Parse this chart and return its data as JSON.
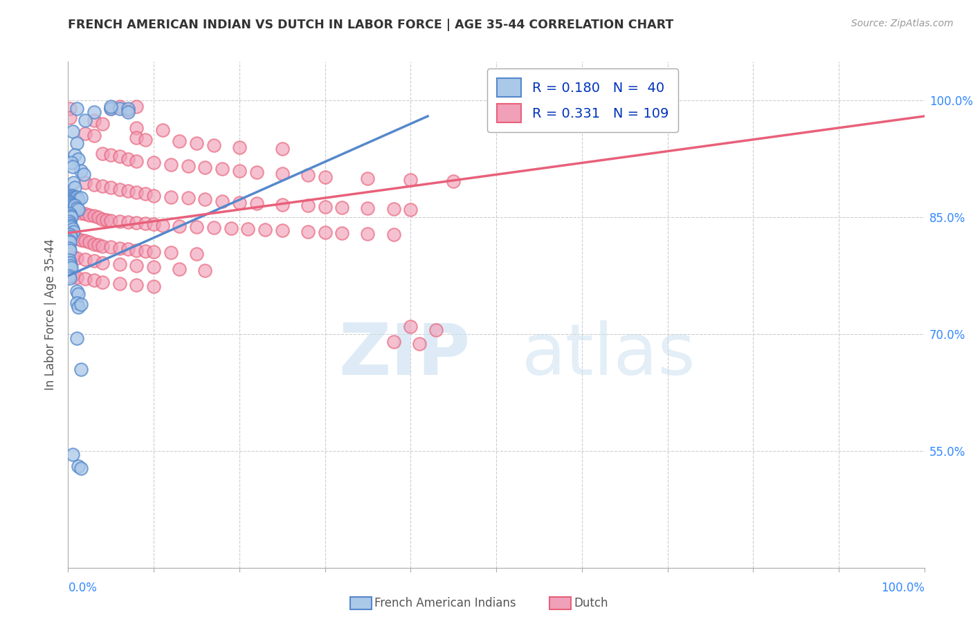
{
  "title": "FRENCH AMERICAN INDIAN VS DUTCH IN LABOR FORCE | AGE 35-44 CORRELATION CHART",
  "source": "Source: ZipAtlas.com",
  "ylabel": "In Labor Force | Age 35-44",
  "ytick_labels": [
    "55.0%",
    "70.0%",
    "85.0%",
    "100.0%"
  ],
  "ytick_values": [
    0.55,
    0.7,
    0.85,
    1.0
  ],
  "xlim": [
    0.0,
    1.0
  ],
  "ylim": [
    0.4,
    1.05
  ],
  "blue_color": "#5588cc",
  "pink_color": "#e8607a",
  "blue_fill": "#aac8e8",
  "pink_fill": "#f0a0b8",
  "watermark_zip": "ZIP",
  "watermark_atlas": "atlas",
  "blue_scatter": [
    [
      0.01,
      0.99
    ],
    [
      0.05,
      0.99
    ],
    [
      0.06,
      0.99
    ],
    [
      0.07,
      0.99
    ],
    [
      0.07,
      0.985
    ],
    [
      0.03,
      0.985
    ],
    [
      0.05,
      0.992
    ],
    [
      0.02,
      0.975
    ],
    [
      0.005,
      0.96
    ],
    [
      0.01,
      0.945
    ],
    [
      0.008,
      0.93
    ],
    [
      0.012,
      0.925
    ],
    [
      0.015,
      0.91
    ],
    [
      0.018,
      0.905
    ],
    [
      0.004,
      0.92
    ],
    [
      0.005,
      0.915
    ],
    [
      0.006,
      0.895
    ],
    [
      0.008,
      0.888
    ],
    [
      0.003,
      0.878
    ],
    [
      0.004,
      0.875
    ],
    [
      0.005,
      0.878
    ],
    [
      0.006,
      0.876
    ],
    [
      0.007,
      0.875
    ],
    [
      0.008,
      0.873
    ],
    [
      0.01,
      0.876
    ],
    [
      0.012,
      0.873
    ],
    [
      0.015,
      0.875
    ],
    [
      0.002,
      0.87
    ],
    [
      0.003,
      0.868
    ],
    [
      0.004,
      0.866
    ],
    [
      0.005,
      0.865
    ],
    [
      0.006,
      0.863
    ],
    [
      0.007,
      0.862
    ],
    [
      0.008,
      0.865
    ],
    [
      0.01,
      0.862
    ],
    [
      0.012,
      0.86
    ],
    [
      0.002,
      0.855
    ],
    [
      0.003,
      0.852
    ],
    [
      0.004,
      0.85
    ],
    [
      0.001,
      0.845
    ],
    [
      0.002,
      0.842
    ],
    [
      0.003,
      0.84
    ],
    [
      0.004,
      0.838
    ],
    [
      0.005,
      0.835
    ],
    [
      0.006,
      0.832
    ],
    [
      0.002,
      0.828
    ],
    [
      0.003,
      0.825
    ],
    [
      0.001,
      0.82
    ],
    [
      0.002,
      0.818
    ],
    [
      0.001,
      0.81
    ],
    [
      0.002,
      0.808
    ],
    [
      0.001,
      0.795
    ],
    [
      0.002,
      0.792
    ],
    [
      0.003,
      0.788
    ],
    [
      0.004,
      0.785
    ],
    [
      0.001,
      0.775
    ],
    [
      0.002,
      0.772
    ],
    [
      0.01,
      0.755
    ],
    [
      0.012,
      0.752
    ],
    [
      0.01,
      0.74
    ],
    [
      0.012,
      0.735
    ],
    [
      0.015,
      0.738
    ],
    [
      0.01,
      0.695
    ],
    [
      0.015,
      0.655
    ],
    [
      0.005,
      0.545
    ],
    [
      0.012,
      0.53
    ],
    [
      0.015,
      0.528
    ]
  ],
  "pink_scatter": [
    [
      0.002,
      0.99
    ],
    [
      0.05,
      0.99
    ],
    [
      0.06,
      0.992
    ],
    [
      0.07,
      0.988
    ],
    [
      0.08,
      0.992
    ],
    [
      0.002,
      0.978
    ],
    [
      0.03,
      0.975
    ],
    [
      0.04,
      0.97
    ],
    [
      0.08,
      0.965
    ],
    [
      0.11,
      0.962
    ],
    [
      0.02,
      0.958
    ],
    [
      0.03,
      0.955
    ],
    [
      0.08,
      0.952
    ],
    [
      0.09,
      0.95
    ],
    [
      0.13,
      0.948
    ],
    [
      0.15,
      0.945
    ],
    [
      0.17,
      0.943
    ],
    [
      0.2,
      0.94
    ],
    [
      0.25,
      0.938
    ],
    [
      0.04,
      0.932
    ],
    [
      0.05,
      0.93
    ],
    [
      0.06,
      0.928
    ],
    [
      0.07,
      0.925
    ],
    [
      0.08,
      0.922
    ],
    [
      0.1,
      0.92
    ],
    [
      0.12,
      0.918
    ],
    [
      0.14,
      0.916
    ],
    [
      0.16,
      0.914
    ],
    [
      0.18,
      0.912
    ],
    [
      0.2,
      0.91
    ],
    [
      0.22,
      0.908
    ],
    [
      0.25,
      0.906
    ],
    [
      0.28,
      0.904
    ],
    [
      0.3,
      0.902
    ],
    [
      0.35,
      0.9
    ],
    [
      0.4,
      0.898
    ],
    [
      0.45,
      0.896
    ],
    [
      0.02,
      0.895
    ],
    [
      0.03,
      0.892
    ],
    [
      0.04,
      0.89
    ],
    [
      0.05,
      0.888
    ],
    [
      0.06,
      0.886
    ],
    [
      0.07,
      0.884
    ],
    [
      0.08,
      0.882
    ],
    [
      0.09,
      0.88
    ],
    [
      0.1,
      0.878
    ],
    [
      0.12,
      0.876
    ],
    [
      0.14,
      0.875
    ],
    [
      0.16,
      0.873
    ],
    [
      0.18,
      0.871
    ],
    [
      0.2,
      0.869
    ],
    [
      0.22,
      0.868
    ],
    [
      0.25,
      0.866
    ],
    [
      0.28,
      0.865
    ],
    [
      0.3,
      0.864
    ],
    [
      0.32,
      0.863
    ],
    [
      0.35,
      0.862
    ],
    [
      0.38,
      0.861
    ],
    [
      0.4,
      0.86
    ],
    [
      0.01,
      0.858
    ],
    [
      0.015,
      0.856
    ],
    [
      0.02,
      0.855
    ],
    [
      0.025,
      0.853
    ],
    [
      0.03,
      0.852
    ],
    [
      0.035,
      0.85
    ],
    [
      0.04,
      0.848
    ],
    [
      0.045,
      0.847
    ],
    [
      0.05,
      0.846
    ],
    [
      0.06,
      0.845
    ],
    [
      0.07,
      0.844
    ],
    [
      0.08,
      0.843
    ],
    [
      0.09,
      0.842
    ],
    [
      0.1,
      0.841
    ],
    [
      0.11,
      0.84
    ],
    [
      0.13,
      0.839
    ],
    [
      0.15,
      0.838
    ],
    [
      0.17,
      0.837
    ],
    [
      0.19,
      0.836
    ],
    [
      0.21,
      0.835
    ],
    [
      0.23,
      0.834
    ],
    [
      0.25,
      0.833
    ],
    [
      0.28,
      0.832
    ],
    [
      0.3,
      0.831
    ],
    [
      0.32,
      0.83
    ],
    [
      0.35,
      0.829
    ],
    [
      0.38,
      0.828
    ],
    [
      0.005,
      0.825
    ],
    [
      0.01,
      0.823
    ],
    [
      0.015,
      0.821
    ],
    [
      0.02,
      0.82
    ],
    [
      0.025,
      0.818
    ],
    [
      0.03,
      0.816
    ],
    [
      0.035,
      0.815
    ],
    [
      0.04,
      0.813
    ],
    [
      0.05,
      0.812
    ],
    [
      0.06,
      0.81
    ],
    [
      0.07,
      0.809
    ],
    [
      0.08,
      0.808
    ],
    [
      0.09,
      0.807
    ],
    [
      0.1,
      0.806
    ],
    [
      0.12,
      0.805
    ],
    [
      0.15,
      0.803
    ],
    [
      0.005,
      0.8
    ],
    [
      0.01,
      0.798
    ],
    [
      0.02,
      0.796
    ],
    [
      0.03,
      0.794
    ],
    [
      0.04,
      0.792
    ],
    [
      0.06,
      0.79
    ],
    [
      0.08,
      0.788
    ],
    [
      0.1,
      0.786
    ],
    [
      0.13,
      0.784
    ],
    [
      0.16,
      0.782
    ],
    [
      0.005,
      0.775
    ],
    [
      0.01,
      0.773
    ],
    [
      0.02,
      0.771
    ],
    [
      0.03,
      0.769
    ],
    [
      0.04,
      0.767
    ],
    [
      0.06,
      0.765
    ],
    [
      0.08,
      0.763
    ],
    [
      0.1,
      0.761
    ],
    [
      0.4,
      0.71
    ],
    [
      0.43,
      0.705
    ],
    [
      0.38,
      0.69
    ],
    [
      0.41,
      0.688
    ]
  ],
  "blue_line": {
    "x0": 0.0,
    "y0": 0.775,
    "x1": 0.42,
    "y1": 0.98
  },
  "pink_line": {
    "x0": 0.0,
    "y0": 0.83,
    "x1": 1.0,
    "y1": 0.98
  }
}
